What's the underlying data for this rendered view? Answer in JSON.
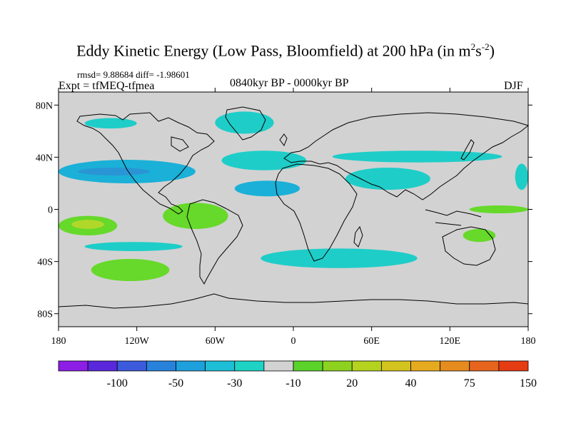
{
  "title": {
    "main": "Eddy Kinetic Energy (Low Pass, Bloomfield) at 200 hPa (in m",
    "sup1": "2",
    "mid": "s",
    "sup2": "-2",
    "end": ")"
  },
  "stats": "rmsd= 9.88684 diff= -1.98601",
  "experiment": "Expt = tfMEQ-tfmea",
  "period": "0840kyr BP - 0000kyr BP",
  "season": "DJF",
  "map": {
    "projection": "cylindrical-equidistant",
    "lon_range": [
      -180,
      180
    ],
    "lat_range": [
      -90,
      90
    ],
    "background_color": "#d2d2d2",
    "coastline_color": "#000000",
    "lat_ticks": [
      {
        "value": 80,
        "label": "80N"
      },
      {
        "value": 40,
        "label": "40N"
      },
      {
        "value": 0,
        "label": "0"
      },
      {
        "value": -40,
        "label": "40S"
      },
      {
        "value": -80,
        "label": "80S"
      }
    ],
    "lon_ticks": [
      {
        "value": -180,
        "label": "180"
      },
      {
        "value": -120,
        "label": "120W"
      },
      {
        "value": -60,
        "label": "60W"
      },
      {
        "value": 0,
        "label": "0"
      },
      {
        "value": 60,
        "label": "60E"
      },
      {
        "value": 120,
        "label": "120E"
      },
      {
        "value": 180,
        "label": "180"
      }
    ],
    "regions": [
      {
        "name": "n-pacific-band-negative",
        "color": "#1ab0d8",
        "lon": [
          -180,
          -75
        ],
        "lat": [
          20,
          38
        ]
      },
      {
        "name": "n-pacific-core-strong-negative",
        "color": "#2a95d4",
        "lon": [
          -165,
          -110
        ],
        "lat": [
          26,
          32
        ]
      },
      {
        "name": "n-atlantic-negative",
        "color": "#1ecdc8",
        "lon": [
          -55,
          10
        ],
        "lat": [
          30,
          45
        ]
      },
      {
        "name": "n-africa-negative",
        "color": "#1ab0d8",
        "lon": [
          -45,
          5
        ],
        "lat": [
          10,
          22
        ]
      },
      {
        "name": "greenland-negative",
        "color": "#1ecdc8",
        "lon": [
          -60,
          -15
        ],
        "lat": [
          58,
          75
        ]
      },
      {
        "name": "alaska-negative",
        "color": "#1ecdc8",
        "lon": [
          -160,
          -120
        ],
        "lat": [
          62,
          70
        ]
      },
      {
        "name": "mideast-negative",
        "color": "#1ecdc8",
        "lon": [
          40,
          105
        ],
        "lat": [
          15,
          32
        ]
      },
      {
        "name": "mediterranean-negative",
        "color": "#1ecdc8",
        "lon": [
          30,
          160
        ],
        "lat": [
          36,
          45
        ]
      },
      {
        "name": "w-pacific-negative",
        "color": "#1ecdc8",
        "lon": [
          170,
          180
        ],
        "lat": [
          15,
          35
        ]
      },
      {
        "name": "s-pacific-band-negative",
        "color": "#1ecdc8",
        "lon": [
          -160,
          -85
        ],
        "lat": [
          -25,
          -32
        ]
      },
      {
        "name": "s-atlantic-negative",
        "color": "#1ecdc8",
        "lon": [
          -25,
          95
        ],
        "lat": [
          -30,
          -45
        ]
      },
      {
        "name": "s-pacific-positive",
        "color": "#66d92a",
        "lon": [
          -155,
          -95
        ],
        "lat": [
          -38,
          -55
        ]
      },
      {
        "name": "e-pacific-positive",
        "color": "#66d92a",
        "lon": [
          -180,
          -135
        ],
        "lat": [
          -5,
          -20
        ]
      },
      {
        "name": "e-pacific-core-positive",
        "color": "#b0d82a",
        "lon": [
          -170,
          -145
        ],
        "lat": [
          -8,
          -15
        ]
      },
      {
        "name": "s-america-positive",
        "color": "#66d92a",
        "lon": [
          -100,
          -50
        ],
        "lat": [
          5,
          -15
        ]
      },
      {
        "name": "indonesia-positive",
        "color": "#66d92a",
        "lon": [
          135,
          180
        ],
        "lat": [
          3,
          -3
        ]
      },
      {
        "name": "australia-positive",
        "color": "#66d92a",
        "lon": [
          130,
          155
        ],
        "lat": [
          -15,
          -25
        ]
      }
    ]
  },
  "colorbar": {
    "colors": [
      "#8c1ee6",
      "#5a28dc",
      "#3c5adc",
      "#2882dc",
      "#1ea0dc",
      "#1ebed6",
      "#1ed2c4",
      "#d2d2d2",
      "#5ad22a",
      "#8cd21e",
      "#b4d21e",
      "#d2c31e",
      "#e6aa1e",
      "#e68c1e",
      "#e6641e",
      "#e63c14"
    ],
    "labels": [
      "-100",
      "-50",
      "-30",
      "-10",
      "20",
      "40",
      "75",
      "150"
    ]
  }
}
